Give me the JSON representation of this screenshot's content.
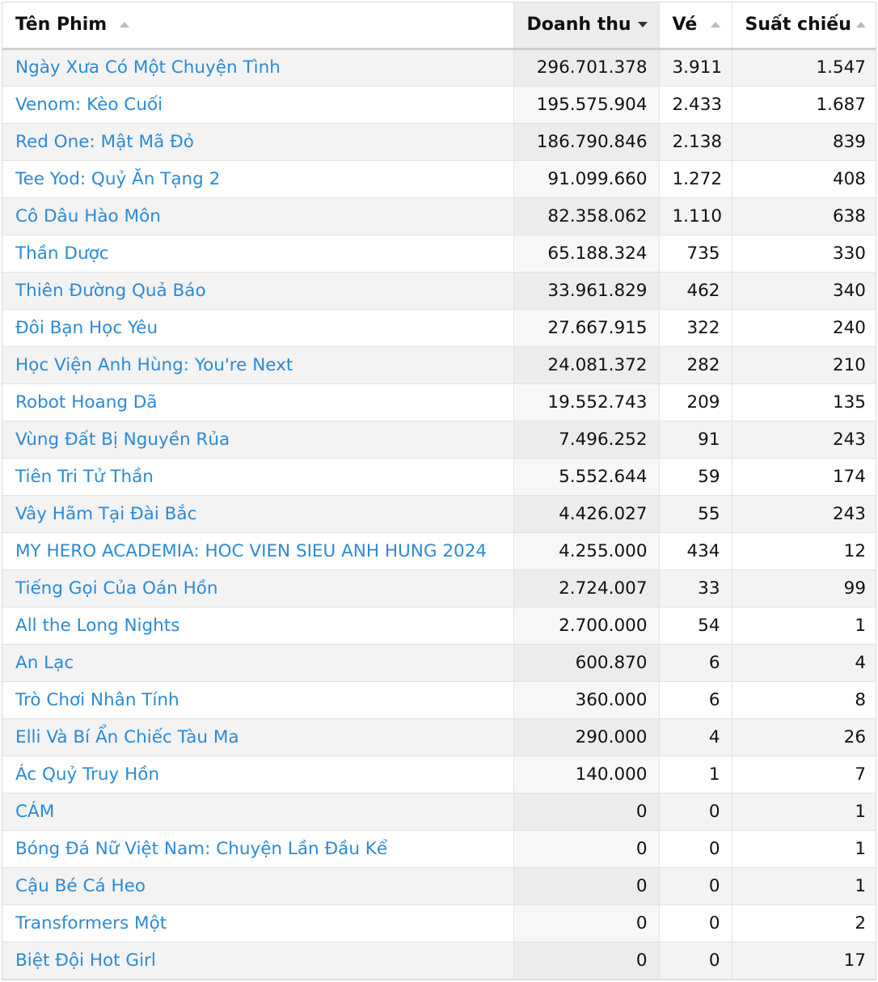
{
  "columns": {
    "name": "Tên Phim",
    "revenue": "Doanh thu",
    "tickets": "Vé",
    "shows": "Suất chiếu"
  },
  "sort": {
    "column": "revenue",
    "direction": "desc"
  },
  "colors": {
    "link": "#2b8ad6",
    "header_sorted_bg": "#ececec",
    "row_alt_bg": "#f3f3f3"
  },
  "rows": [
    {
      "name": "Ngày Xưa Có Một Chuyện Tình",
      "revenue": "296.701.378",
      "tickets": "3.911",
      "shows": "1.547"
    },
    {
      "name": "Venom: Kèo Cuối",
      "revenue": "195.575.904",
      "tickets": "2.433",
      "shows": "1.687"
    },
    {
      "name": "Red One: Mật Mã Đỏ",
      "revenue": "186.790.846",
      "tickets": "2.138",
      "shows": "839"
    },
    {
      "name": "Tee Yod: Quỷ Ăn Tạng 2",
      "revenue": "91.099.660",
      "tickets": "1.272",
      "shows": "408"
    },
    {
      "name": "Cô Dâu Hào Môn",
      "revenue": "82.358.062",
      "tickets": "1.110",
      "shows": "638"
    },
    {
      "name": "Thần Dược",
      "revenue": "65.188.324",
      "tickets": "735",
      "shows": "330"
    },
    {
      "name": "Thiên Đường Quả Báo",
      "revenue": "33.961.829",
      "tickets": "462",
      "shows": "340"
    },
    {
      "name": "Đôi Bạn Học Yêu",
      "revenue": "27.667.915",
      "tickets": "322",
      "shows": "240"
    },
    {
      "name": "Học Viện Anh Hùng: You're Next",
      "revenue": "24.081.372",
      "tickets": "282",
      "shows": "210"
    },
    {
      "name": "Robot Hoang Dã",
      "revenue": "19.552.743",
      "tickets": "209",
      "shows": "135"
    },
    {
      "name": "Vùng Đất Bị Nguyền Rủa",
      "revenue": "7.496.252",
      "tickets": "91",
      "shows": "243"
    },
    {
      "name": "Tiên Tri Tử Thần",
      "revenue": "5.552.644",
      "tickets": "59",
      "shows": "174"
    },
    {
      "name": "Vây Hãm Tại Đài Bắc",
      "revenue": "4.426.027",
      "tickets": "55",
      "shows": "243"
    },
    {
      "name": "MY HERO ACADEMIA: HOC VIEN SIEU ANH HUNG 2024",
      "revenue": "4.255.000",
      "tickets": "434",
      "shows": "12"
    },
    {
      "name": "Tiếng Gọi Của Oán Hồn",
      "revenue": "2.724.007",
      "tickets": "33",
      "shows": "99"
    },
    {
      "name": "All the Long Nights",
      "revenue": "2.700.000",
      "tickets": "54",
      "shows": "1"
    },
    {
      "name": "An Lạc",
      "revenue": "600.870",
      "tickets": "6",
      "shows": "4"
    },
    {
      "name": "Trò Chơi Nhân Tính",
      "revenue": "360.000",
      "tickets": "6",
      "shows": "8"
    },
    {
      "name": "Elli Và Bí Ẩn Chiếc Tàu Ma",
      "revenue": "290.000",
      "tickets": "4",
      "shows": "26"
    },
    {
      "name": "Ác Quỷ Truy Hồn",
      "revenue": "140.000",
      "tickets": "1",
      "shows": "7"
    },
    {
      "name": "CÁM",
      "revenue": "0",
      "tickets": "0",
      "shows": "1"
    },
    {
      "name": "Bóng Đá Nữ Việt Nam: Chuyện Lần Đầu Kể",
      "revenue": "0",
      "tickets": "0",
      "shows": "1"
    },
    {
      "name": "Cậu Bé Cá Heo",
      "revenue": "0",
      "tickets": "0",
      "shows": "1"
    },
    {
      "name": "Transformers Một",
      "revenue": "0",
      "tickets": "0",
      "shows": "2"
    },
    {
      "name": "Biệt Đội Hot Girl",
      "revenue": "0",
      "tickets": "0",
      "shows": "17"
    }
  ]
}
